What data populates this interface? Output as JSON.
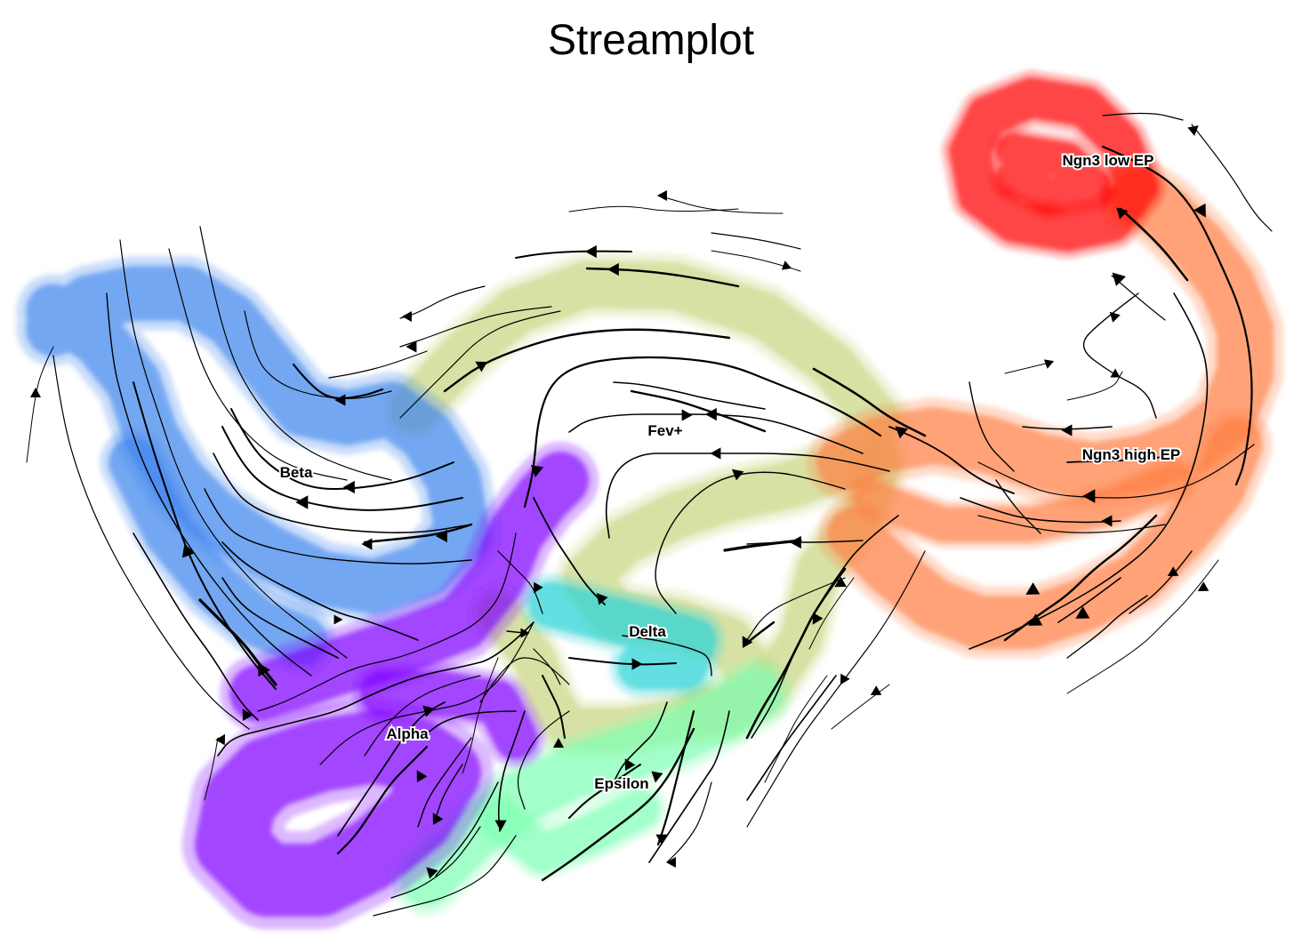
{
  "chart_data": {
    "type": "scatter",
    "title": "Streamplot",
    "xlabel": "",
    "ylabel": "",
    "grid": false,
    "axes_visible": false,
    "overlay": "velocity streamlines with arrowheads",
    "clusters": [
      {
        "name": "Ngn3 low EP",
        "color": "#ff0000",
        "label_pos": [
          1246,
          180
        ]
      },
      {
        "name": "Ngn3 high EP",
        "color": "#ff7f44",
        "label_pos": [
          1272,
          511
        ]
      },
      {
        "name": "Fev+",
        "color": "#c9d682",
        "label_pos": [
          748,
          484
        ]
      },
      {
        "name": "Beta",
        "color": "#3f86ee",
        "label_pos": [
          333,
          531
        ]
      },
      {
        "name": "Alpha",
        "color": "#8000ff",
        "label_pos": [
          458,
          825
        ]
      },
      {
        "name": "Delta",
        "color": "#2ad4d8",
        "label_pos": [
          728,
          710
        ]
      },
      {
        "name": "Epsilon",
        "color": "#80ffb4",
        "label_pos": [
          699,
          881
        ]
      }
    ]
  }
}
